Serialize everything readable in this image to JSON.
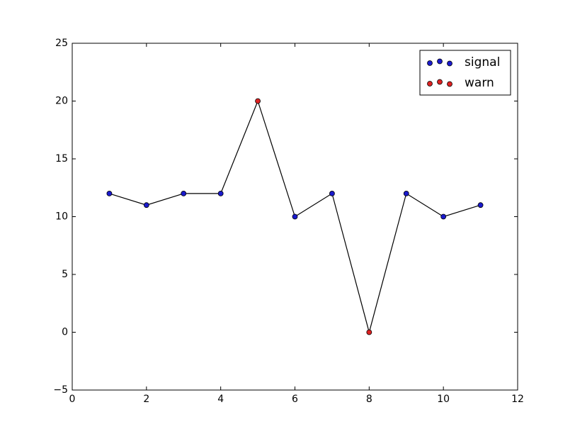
{
  "chart_data": {
    "type": "line",
    "line": {
      "x": [
        1,
        2,
        3,
        4,
        5,
        6,
        7,
        8,
        9,
        10,
        11
      ],
      "values": [
        12,
        11,
        12,
        12,
        20,
        10,
        12,
        0,
        12,
        10,
        11
      ],
      "color": "#000000"
    },
    "series": [
      {
        "name": "signal",
        "color": "#1a1acc",
        "x": [
          1,
          2,
          3,
          4,
          6,
          7,
          9,
          10,
          11
        ],
        "values": [
          12,
          11,
          12,
          12,
          10,
          12,
          12,
          10,
          11
        ]
      },
      {
        "name": "warn",
        "color": "#dd2222",
        "x": [
          5,
          8
        ],
        "values": [
          20,
          0
        ]
      }
    ],
    "xlim": [
      0,
      12
    ],
    "xticks": [
      0,
      2,
      4,
      6,
      8,
      10,
      12
    ],
    "ylim": [
      -5,
      25
    ],
    "yticks": [
      {
        "value": -5,
        "label": "−5"
      },
      0,
      5,
      10,
      15,
      20,
      25
    ],
    "legend": "upper right"
  }
}
